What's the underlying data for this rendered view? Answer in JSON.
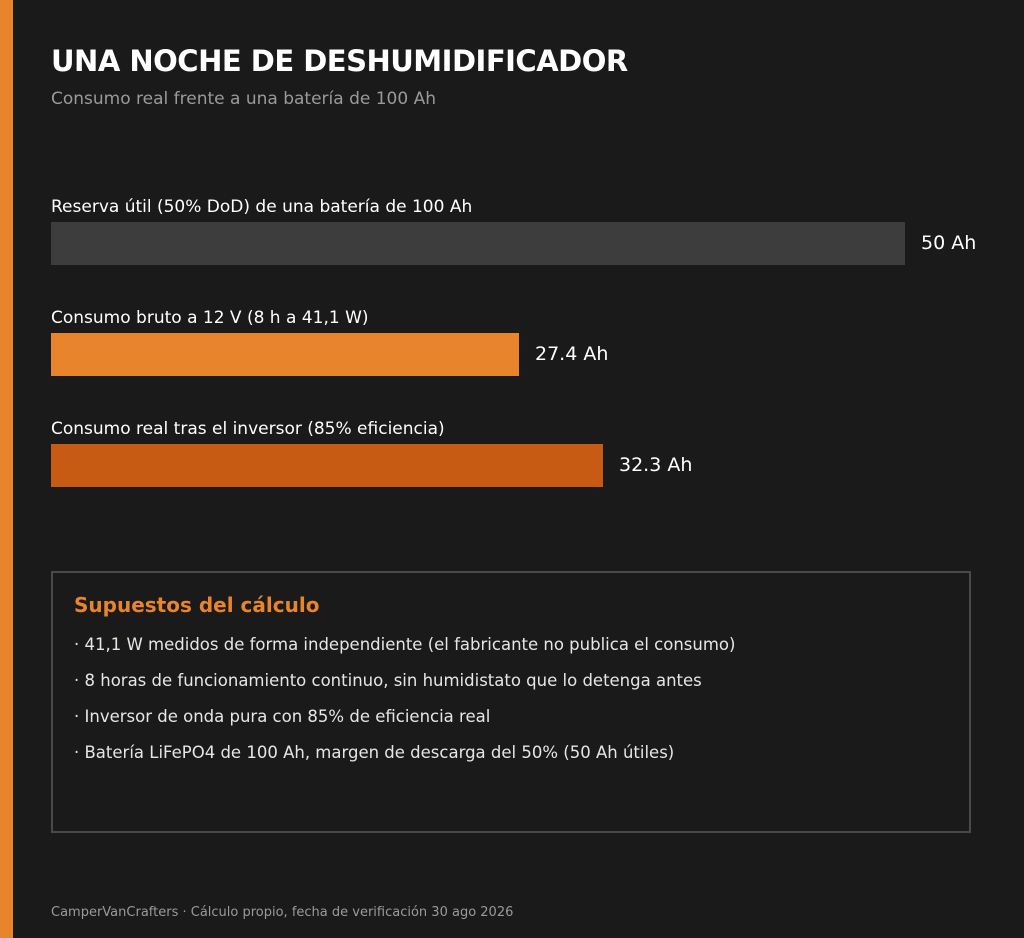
{
  "header": {
    "title": "UNA NOCHE DE DESHUMIDIFICADOR",
    "subtitle": "Consumo real frente a una batería de 100 Ah"
  },
  "chart_data": {
    "type": "bar",
    "orientation": "horizontal",
    "categories": [
      "Reserva útil (50% DoD) de una batería de 100 Ah",
      "Consumo bruto a 12 V (8 h a 41,1 W)",
      "Consumo real tras el inversor (85% eficiencia)"
    ],
    "values": [
      50,
      27.4,
      32.3
    ],
    "value_labels": [
      "50 Ah",
      "27.4 Ah",
      "32.3 Ah"
    ],
    "unit": "Ah",
    "colors": [
      "#3d3d3d",
      "#e8842b",
      "#c75b14"
    ],
    "xlim": [
      0,
      50
    ],
    "grid": false,
    "legend": "none"
  },
  "notes": {
    "title": "Supuestos del cálculo",
    "items": [
      "· 41,1 W medidos de forma independiente (el fabricante no publica el consumo)",
      "· 8 horas de funcionamiento continuo, sin humidistato que lo detenga antes",
      "· Inversor de onda pura con 85% de eficiencia real",
      "· Batería LiFePO4 de 100 Ah, margen de descarga del 50% (50 Ah útiles)"
    ]
  },
  "footer": {
    "text": "CamperVanCrafters · Cálculo propio, fecha de verificación 30 ago 2026"
  },
  "theme": {
    "background": "#1a1a1a",
    "accent": "#e8842b"
  }
}
